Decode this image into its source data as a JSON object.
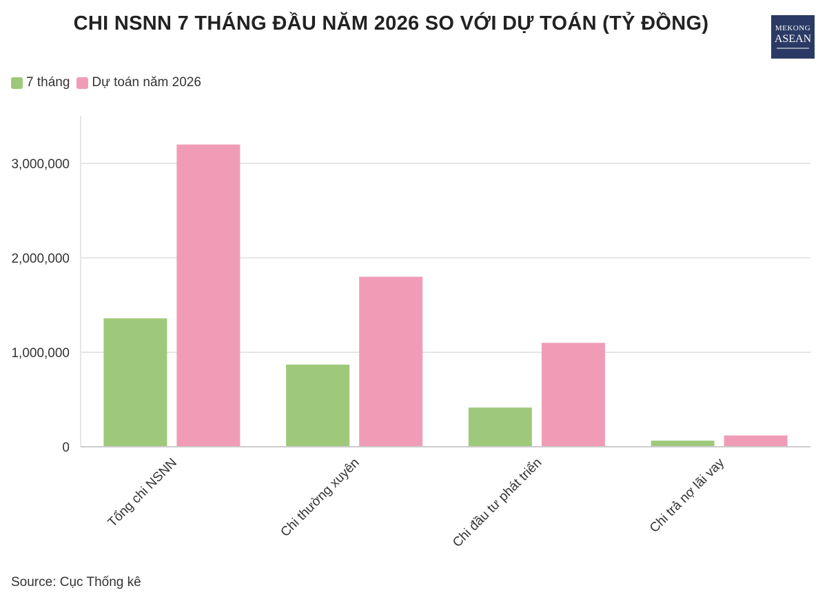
{
  "header": {
    "title": "CHI NSNN 7 THÁNG ĐẦU NĂM 2026 SO VỚI DỰ TOÁN (TỶ ĐỒNG)",
    "logo_line1": "MEKONG",
    "logo_line2": "ASEAN"
  },
  "colors": {
    "series1": "#9fc97a",
    "series2": "#f19cb7",
    "grid": "#e6e6e6",
    "axis": "#cccccc",
    "text": "#333333",
    "logo_bg": "#2b3a64"
  },
  "footer": {
    "source": "Source: Cục Thống kê"
  },
  "chart_data": {
    "type": "bar",
    "title": "CHI NSNN 7 THÁNG ĐẦU NĂM 2026 SO VỚI DỰ TOÁN (TỶ ĐỒNG)",
    "categories": [
      "Tổng chi NSNN",
      "Chi thường xuyên",
      "Chi đầu tư phát triển",
      "Chi trả nợ lãi vay"
    ],
    "series": [
      {
        "name": "7 tháng",
        "values": [
          1360000,
          870000,
          415000,
          65000
        ]
      },
      {
        "name": "Dự toán năm 2026",
        "values": [
          3200000,
          1800000,
          1100000,
          120000
        ]
      }
    ],
    "yticks": [
      0,
      1000000,
      2000000,
      3000000
    ],
    "ytick_labels": [
      "0",
      "1,000,000",
      "2,000,000",
      "3,000,000"
    ],
    "ylim": [
      0,
      3500000
    ],
    "xlabel": "",
    "ylabel": "",
    "grid": true,
    "legend_position": "top-left"
  }
}
